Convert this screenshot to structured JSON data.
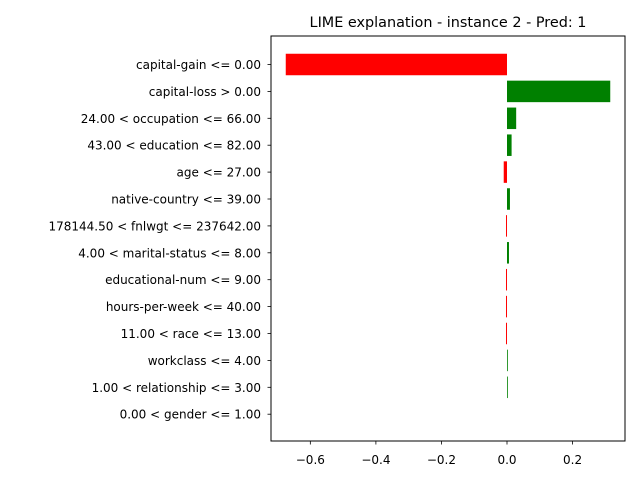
{
  "chart_data": {
    "type": "bar",
    "orientation": "horizontal",
    "title": "LIME explanation - instance 2 - Pred: 1",
    "xlabel": "",
    "ylabel": "",
    "xlim": [
      -0.72,
      0.36
    ],
    "x_ticks": [
      -0.6,
      -0.4,
      -0.2,
      0.0,
      0.2
    ],
    "x_tick_labels": [
      "−0.6",
      "−0.4",
      "−0.2",
      "0.0",
      "0.2"
    ],
    "grid": false,
    "positive_color": "#008000",
    "negative_color": "#ff0000",
    "categories": [
      "capital-gain <= 0.00",
      "capital-loss > 0.00",
      "24.00 < occupation <= 66.00",
      "43.00 < education <= 82.00",
      "age <= 27.00",
      "native-country <= 39.00",
      "178144.50 < fnlwgt <= 237642.00",
      "4.00 < marital-status <= 8.00",
      "educational-num <= 9.00",
      "hours-per-week <= 40.00",
      "11.00 < race <= 13.00",
      "workclass <= 4.00",
      "1.00 < relationship <= 3.00",
      "0.00 < gender <= 1.00"
    ],
    "values": [
      -0.675,
      0.315,
      0.028,
      0.014,
      -0.01,
      0.009,
      -0.003,
      0.006,
      -0.003,
      -0.003,
      -0.003,
      0.002,
      0.002,
      0.0
    ]
  }
}
